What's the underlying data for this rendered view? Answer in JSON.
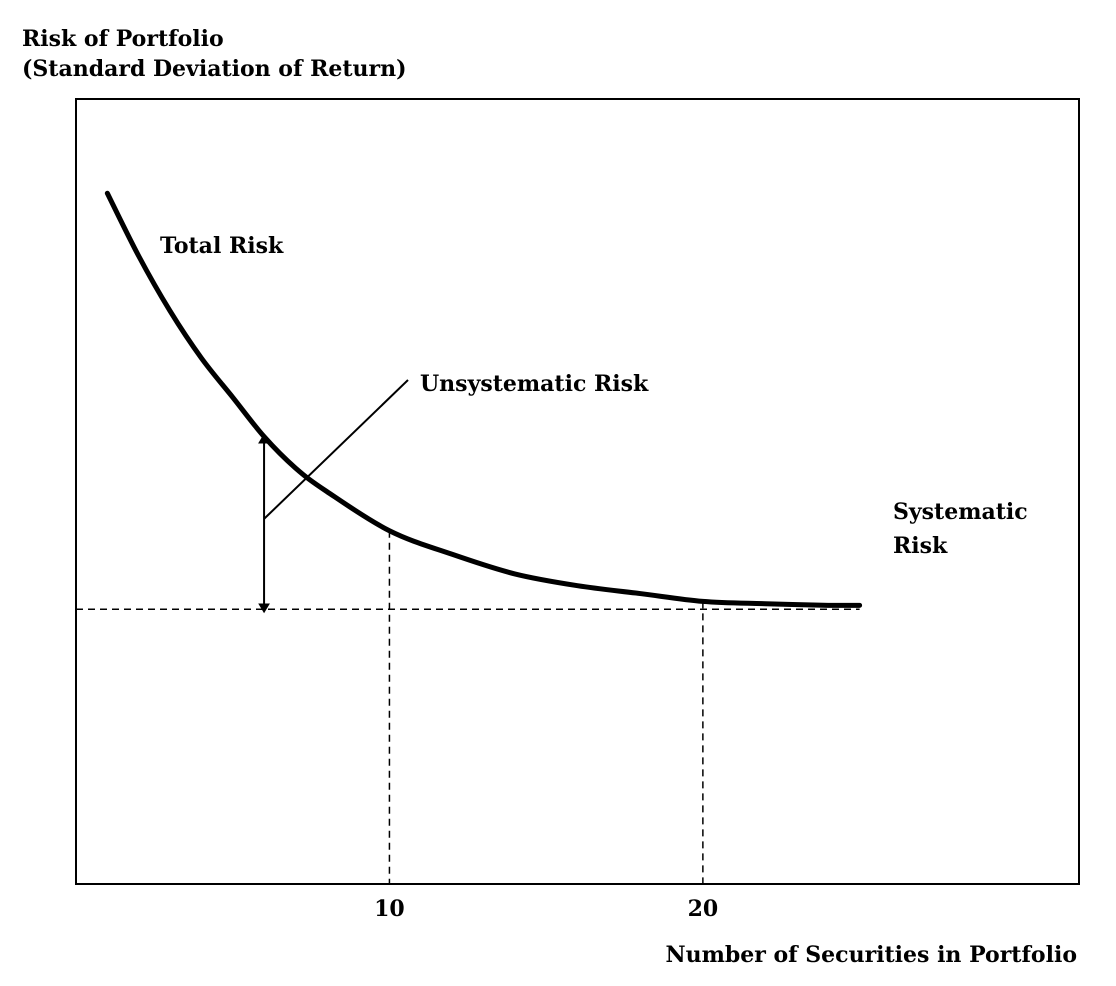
{
  "chart_data": {
    "type": "line",
    "title": "",
    "ylabel_line1": "Risk of Portfolio",
    "ylabel_line2": "(Standard Deviation of Return)",
    "xlabel": "Number of Securities in Portfolio",
    "xlim": [
      0,
      32
    ],
    "ylim": [
      0,
      1
    ],
    "x_ticks": [
      {
        "value": 10,
        "label": "10"
      },
      {
        "value": 20,
        "label": "20"
      }
    ],
    "series": [
      {
        "name": "Total Risk",
        "x": [
          1,
          2,
          3,
          4,
          5,
          6,
          7,
          8,
          10,
          12,
          14,
          16,
          18,
          20,
          22,
          24,
          25
        ],
        "y": [
          0.88,
          0.8,
          0.73,
          0.67,
          0.62,
          0.57,
          0.53,
          0.5,
          0.45,
          0.42,
          0.395,
          0.38,
          0.37,
          0.36,
          0.357,
          0.355,
          0.355
        ]
      }
    ],
    "systematic_risk_level": 0.35,
    "guide_lines_x": [
      10,
      20
    ],
    "unsystematic_arrow_x": 6,
    "annotations": {
      "total_risk": "Total Risk",
      "unsystematic_risk": "Unsystematic Risk",
      "systematic_risk_line1": "Systematic",
      "systematic_risk_line2": "Risk"
    },
    "grid": false,
    "legend": "none"
  }
}
